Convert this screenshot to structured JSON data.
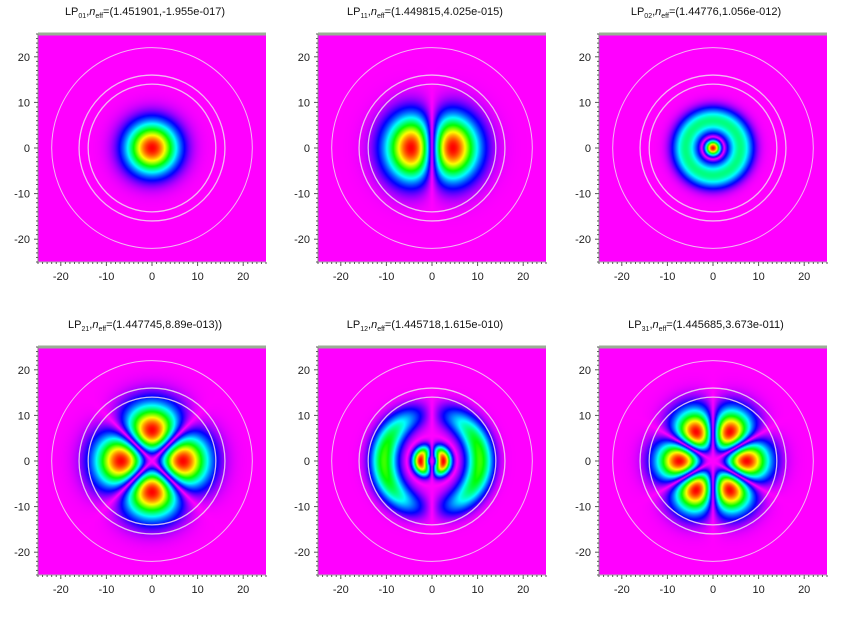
{
  "colors": {
    "background": "#ff00ff",
    "frame_top": "#9aae96",
    "circles": "#f0d8f0",
    "colormap": [
      "#ff00ff",
      "#0000ff",
      "#00ffff",
      "#00ff00",
      "#ffff00",
      "#ff0000"
    ]
  },
  "chart_data": [
    {
      "type": "heatmap",
      "mode": "LP",
      "mode_index": "01",
      "n_label": "n",
      "n_sub": "eff",
      "value": "=(1.451901,-1.955e-017)",
      "xlim": [
        -25,
        25
      ],
      "ylim": [
        -25,
        25
      ],
      "xticks": [
        -20,
        -10,
        0,
        10,
        20
      ],
      "yticks": [
        -20,
        -10,
        0,
        10,
        20
      ],
      "circle_radii": [
        14,
        16,
        22
      ]
    },
    {
      "type": "heatmap",
      "mode": "LP",
      "mode_index": "11",
      "n_label": "n",
      "n_sub": "eff",
      "value": "=(1.449815,4.025e-015)",
      "xlim": [
        -25,
        25
      ],
      "ylim": [
        -25,
        25
      ],
      "xticks": [
        -20,
        -10,
        0,
        10,
        20
      ],
      "yticks": [
        -20,
        -10,
        0,
        10,
        20
      ],
      "circle_radii": [
        14,
        16,
        22
      ]
    },
    {
      "type": "heatmap",
      "mode": "LP",
      "mode_index": "02",
      "n_label": "n",
      "n_sub": "eff",
      "value": "=(1.44776,1.056e-012)",
      "xlim": [
        -25,
        25
      ],
      "ylim": [
        -25,
        25
      ],
      "xticks": [
        -20,
        -10,
        0,
        10,
        20
      ],
      "yticks": [
        -20,
        -10,
        0,
        10,
        20
      ],
      "circle_radii": [
        14,
        16,
        22
      ]
    },
    {
      "type": "heatmap",
      "mode": "LP",
      "mode_index": "21",
      "n_label": "n",
      "n_sub": "eff",
      "value": "=(1.447745,8.89e-013))",
      "xlim": [
        -25,
        25
      ],
      "ylim": [
        -25,
        25
      ],
      "xticks": [
        -20,
        -10,
        0,
        10,
        20
      ],
      "yticks": [
        -20,
        -10,
        0,
        10,
        20
      ],
      "circle_radii": [
        14,
        16,
        22
      ]
    },
    {
      "type": "heatmap",
      "mode": "LP",
      "mode_index": "12",
      "n_label": "n",
      "n_sub": "eff",
      "value": "=(1.445718,1.615e-010)",
      "xlim": [
        -25,
        25
      ],
      "ylim": [
        -25,
        25
      ],
      "xticks": [
        -20,
        -10,
        0,
        10,
        20
      ],
      "yticks": [
        -20,
        -10,
        0,
        10,
        20
      ],
      "circle_radii": [
        14,
        16,
        22
      ]
    },
    {
      "type": "heatmap",
      "mode": "LP",
      "mode_index": "31",
      "n_label": "n",
      "n_sub": "eff",
      "value": "=(1.445685,3.673e-011)",
      "xlim": [
        -25,
        25
      ],
      "ylim": [
        -25,
        25
      ],
      "xticks": [
        -20,
        -10,
        0,
        10,
        20
      ],
      "yticks": [
        -20,
        -10,
        0,
        10,
        20
      ],
      "circle_radii": [
        14,
        16,
        22
      ]
    }
  ]
}
